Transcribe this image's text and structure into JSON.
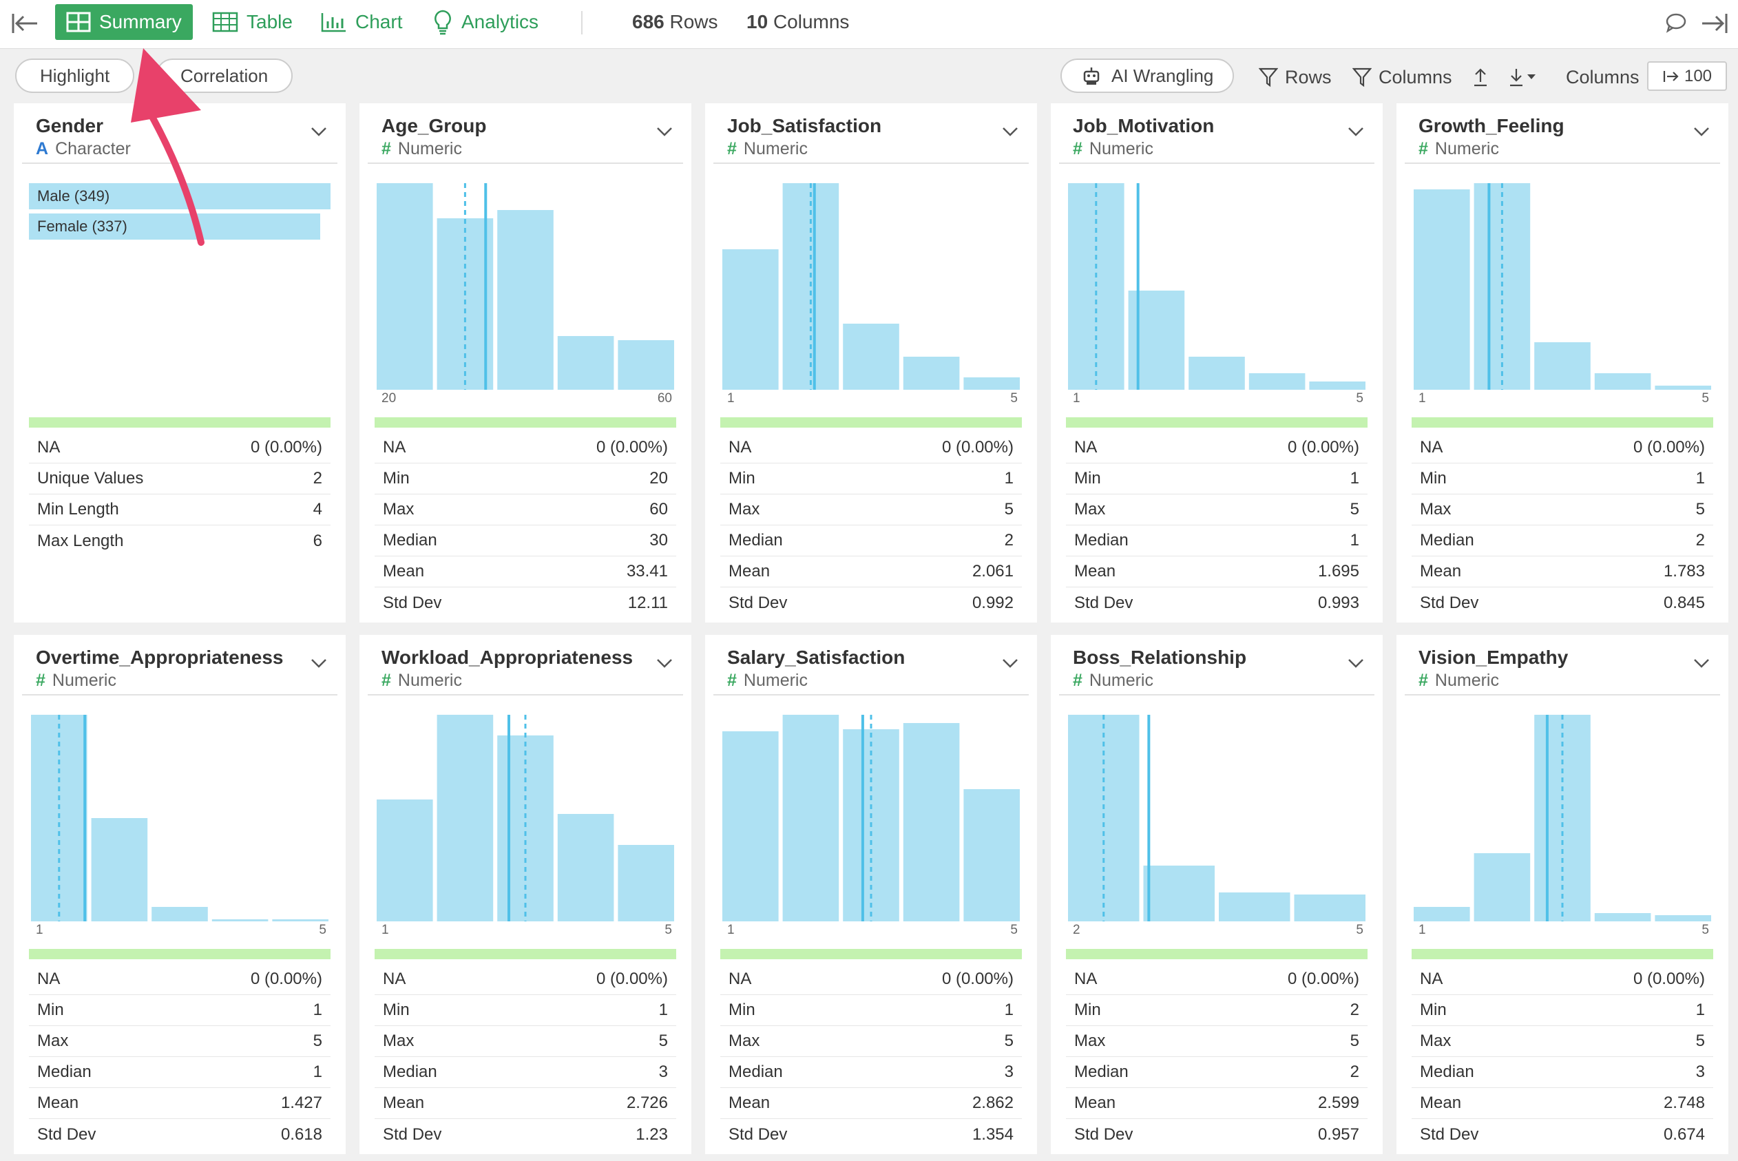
{
  "toolbar": {
    "summary_label": "Summary",
    "table_label": "Table",
    "chart_label": "Chart",
    "analytics_label": "Analytics",
    "rows_count": "686",
    "rows_label": "Rows",
    "columns_count": "10",
    "columns_label": "Columns"
  },
  "subbar": {
    "highlight_label": "Highlight",
    "correlation_label": "Correlation",
    "ai_wrangling_label": "AI Wrangling",
    "rows_filter_label": "Rows",
    "columns_filter_label": "Columns",
    "columns_label": "Columns",
    "columns_limit": "100"
  },
  "colors": {
    "accent": "#3aa860",
    "bar": "#aee1f3",
    "line": "#4fc0e8",
    "green_bar": "#c4f2b0",
    "arrow": "#e8416a"
  },
  "columns": [
    {
      "name": "Gender",
      "type": "Character",
      "type_symbol": "A",
      "categories": [
        {
          "label": "Male (349)",
          "count": 349
        },
        {
          "label": "Female (337)",
          "count": 337
        }
      ],
      "stats": [
        {
          "label": "NA",
          "value": "0 (0.00%)"
        },
        {
          "label": "Unique Values",
          "value": "2"
        },
        {
          "label": "Min Length",
          "value": "4"
        },
        {
          "label": "Max Length",
          "value": "6"
        }
      ]
    },
    {
      "name": "Age_Group",
      "type": "Numeric",
      "type_symbol": "#",
      "axis_min": "20",
      "axis_max": "60",
      "chart_data": {
        "type": "bar",
        "x_range": [
          20,
          60
        ],
        "bins": [
          {
            "x": 20,
            "value": 1.0
          },
          {
            "x": 30,
            "value": 0.83
          },
          {
            "x": 40,
            "value": 0.87
          },
          {
            "x": 50,
            "value": 0.26
          },
          {
            "x": 60,
            "value": 0.24
          }
        ],
        "mean": 33.41,
        "median": 30
      },
      "stats": [
        {
          "label": "NA",
          "value": "0 (0.00%)"
        },
        {
          "label": "Min",
          "value": "20"
        },
        {
          "label": "Max",
          "value": "60"
        },
        {
          "label": "Median",
          "value": "30"
        },
        {
          "label": "Mean",
          "value": "33.41"
        },
        {
          "label": "Std Dev",
          "value": "12.11"
        }
      ]
    },
    {
      "name": "Job_Satisfaction",
      "type": "Numeric",
      "type_symbol": "#",
      "axis_min": "1",
      "axis_max": "5",
      "chart_data": {
        "type": "bar",
        "x_range": [
          1,
          5
        ],
        "bins": [
          {
            "x": 1,
            "value": 0.68
          },
          {
            "x": 2,
            "value": 1.0
          },
          {
            "x": 3,
            "value": 0.32
          },
          {
            "x": 4,
            "value": 0.16
          },
          {
            "x": 5,
            "value": 0.06
          }
        ],
        "mean": 2.061,
        "median": 2
      },
      "stats": [
        {
          "label": "NA",
          "value": "0 (0.00%)"
        },
        {
          "label": "Min",
          "value": "1"
        },
        {
          "label": "Max",
          "value": "5"
        },
        {
          "label": "Median",
          "value": "2"
        },
        {
          "label": "Mean",
          "value": "2.061"
        },
        {
          "label": "Std Dev",
          "value": "0.992"
        }
      ]
    },
    {
      "name": "Job_Motivation",
      "type": "Numeric",
      "type_symbol": "#",
      "axis_min": "1",
      "axis_max": "5",
      "chart_data": {
        "type": "bar",
        "x_range": [
          1,
          5
        ],
        "bins": [
          {
            "x": 1,
            "value": 1.0
          },
          {
            "x": 2,
            "value": 0.48
          },
          {
            "x": 3,
            "value": 0.16
          },
          {
            "x": 4,
            "value": 0.08
          },
          {
            "x": 5,
            "value": 0.04
          }
        ],
        "mean": 1.695,
        "median": 1
      },
      "stats": [
        {
          "label": "NA",
          "value": "0 (0.00%)"
        },
        {
          "label": "Min",
          "value": "1"
        },
        {
          "label": "Max",
          "value": "5"
        },
        {
          "label": "Median",
          "value": "1"
        },
        {
          "label": "Mean",
          "value": "1.695"
        },
        {
          "label": "Std Dev",
          "value": "0.993"
        }
      ]
    },
    {
      "name": "Growth_Feeling",
      "type": "Numeric",
      "type_symbol": "#",
      "axis_min": "1",
      "axis_max": "5",
      "chart_data": {
        "type": "bar",
        "x_range": [
          1,
          5
        ],
        "bins": [
          {
            "x": 1,
            "value": 0.97
          },
          {
            "x": 2,
            "value": 1.0
          },
          {
            "x": 3,
            "value": 0.23
          },
          {
            "x": 4,
            "value": 0.08
          },
          {
            "x": 5,
            "value": 0.02
          }
        ],
        "mean": 1.783,
        "median": 2
      },
      "stats": [
        {
          "label": "NA",
          "value": "0 (0.00%)"
        },
        {
          "label": "Min",
          "value": "1"
        },
        {
          "label": "Max",
          "value": "5"
        },
        {
          "label": "Median",
          "value": "2"
        },
        {
          "label": "Mean",
          "value": "1.783"
        },
        {
          "label": "Std Dev",
          "value": "0.845"
        }
      ]
    },
    {
      "name": "Overtime_Appropriateness",
      "type": "Numeric",
      "type_symbol": "#",
      "axis_min": "1",
      "axis_max": "5",
      "chart_data": {
        "type": "bar",
        "x_range": [
          1,
          5
        ],
        "bins": [
          {
            "x": 1,
            "value": 1.0
          },
          {
            "x": 2,
            "value": 0.5
          },
          {
            "x": 3,
            "value": 0.07
          },
          {
            "x": 4,
            "value": 0.01
          },
          {
            "x": 5,
            "value": 0.01
          }
        ],
        "mean": 1.427,
        "median": 1
      },
      "stats": [
        {
          "label": "NA",
          "value": "0 (0.00%)"
        },
        {
          "label": "Min",
          "value": "1"
        },
        {
          "label": "Max",
          "value": "5"
        },
        {
          "label": "Median",
          "value": "1"
        },
        {
          "label": "Mean",
          "value": "1.427"
        },
        {
          "label": "Std Dev",
          "value": "0.618"
        }
      ]
    },
    {
      "name": "Workload_Appropriateness",
      "type": "Numeric",
      "type_symbol": "#",
      "axis_min": "1",
      "axis_max": "5",
      "chart_data": {
        "type": "bar",
        "x_range": [
          1,
          5
        ],
        "bins": [
          {
            "x": 1,
            "value": 0.59
          },
          {
            "x": 2,
            "value": 1.0
          },
          {
            "x": 3,
            "value": 0.9
          },
          {
            "x": 4,
            "value": 0.52
          },
          {
            "x": 5,
            "value": 0.37
          }
        ],
        "mean": 2.726,
        "median": 3
      },
      "stats": [
        {
          "label": "NA",
          "value": "0 (0.00%)"
        },
        {
          "label": "Min",
          "value": "1"
        },
        {
          "label": "Max",
          "value": "5"
        },
        {
          "label": "Median",
          "value": "3"
        },
        {
          "label": "Mean",
          "value": "2.726"
        },
        {
          "label": "Std Dev",
          "value": "1.23"
        }
      ]
    },
    {
      "name": "Salary_Satisfaction",
      "type": "Numeric",
      "type_symbol": "#",
      "axis_min": "1",
      "axis_max": "5",
      "chart_data": {
        "type": "bar",
        "x_range": [
          1,
          5
        ],
        "bins": [
          {
            "x": 1,
            "value": 0.92
          },
          {
            "x": 2,
            "value": 1.0
          },
          {
            "x": 3,
            "value": 0.93
          },
          {
            "x": 4,
            "value": 0.96
          },
          {
            "x": 5,
            "value": 0.64
          }
        ],
        "mean": 2.862,
        "median": 3
      },
      "stats": [
        {
          "label": "NA",
          "value": "0 (0.00%)"
        },
        {
          "label": "Min",
          "value": "1"
        },
        {
          "label": "Max",
          "value": "5"
        },
        {
          "label": "Median",
          "value": "3"
        },
        {
          "label": "Mean",
          "value": "2.862"
        },
        {
          "label": "Std Dev",
          "value": "1.354"
        }
      ]
    },
    {
      "name": "Boss_Relationship",
      "type": "Numeric",
      "type_symbol": "#",
      "axis_min": "2",
      "axis_max": "5",
      "chart_data": {
        "type": "bar",
        "x_range": [
          2,
          5
        ],
        "bins": [
          {
            "x": 2,
            "value": 1.0
          },
          {
            "x": 3,
            "value": 0.27
          },
          {
            "x": 4,
            "value": 0.14
          },
          {
            "x": 5,
            "value": 0.13
          }
        ],
        "mean": 2.599,
        "median": 2
      },
      "stats": [
        {
          "label": "NA",
          "value": "0 (0.00%)"
        },
        {
          "label": "Min",
          "value": "2"
        },
        {
          "label": "Max",
          "value": "5"
        },
        {
          "label": "Median",
          "value": "2"
        },
        {
          "label": "Mean",
          "value": "2.599"
        },
        {
          "label": "Std Dev",
          "value": "0.957"
        }
      ]
    },
    {
      "name": "Vision_Empathy",
      "type": "Numeric",
      "type_symbol": "#",
      "axis_min": "1",
      "axis_max": "5",
      "chart_data": {
        "type": "bar",
        "x_range": [
          1,
          5
        ],
        "bins": [
          {
            "x": 1,
            "value": 0.07
          },
          {
            "x": 2,
            "value": 0.33
          },
          {
            "x": 3,
            "value": 1.0
          },
          {
            "x": 4,
            "value": 0.04
          },
          {
            "x": 5,
            "value": 0.03
          }
        ],
        "mean": 2.748,
        "median": 3
      },
      "stats": [
        {
          "label": "NA",
          "value": "0 (0.00%)"
        },
        {
          "label": "Min",
          "value": "1"
        },
        {
          "label": "Max",
          "value": "5"
        },
        {
          "label": "Median",
          "value": "3"
        },
        {
          "label": "Mean",
          "value": "2.748"
        },
        {
          "label": "Std Dev",
          "value": "0.674"
        }
      ]
    }
  ]
}
